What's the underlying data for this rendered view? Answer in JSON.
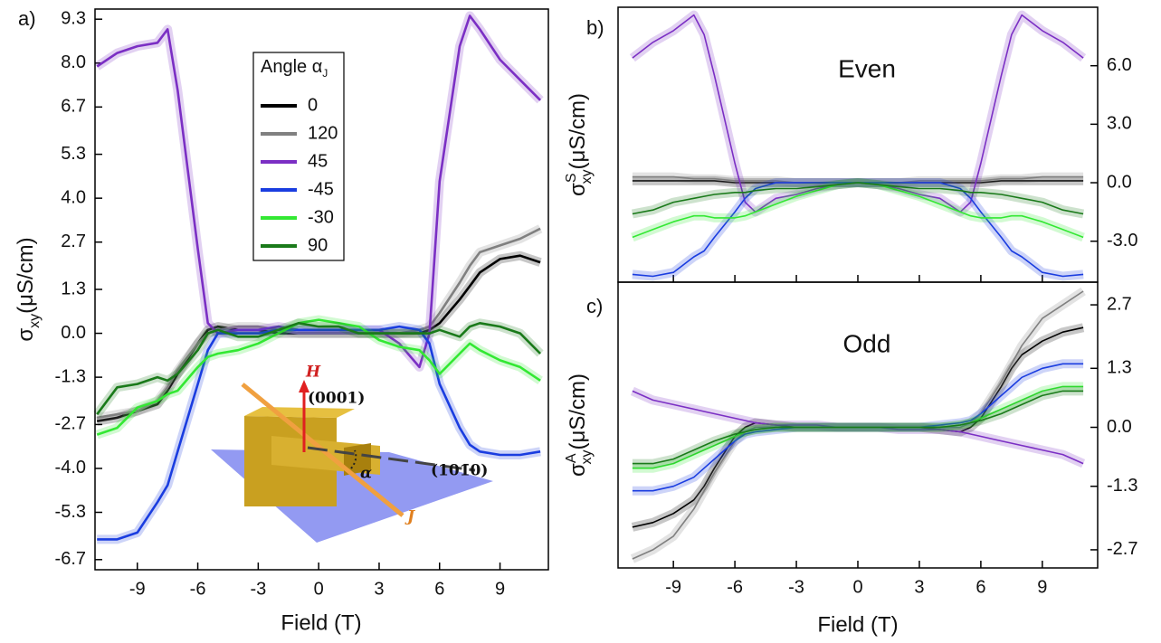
{
  "chart_data": [
    {
      "type": "line",
      "panel_label": "a)",
      "x_label": "Field (T)",
      "y_label": {
        "symbol": "σ",
        "sub": "xy",
        "unit": "(μS/cm)"
      },
      "legend_title": {
        "text": "Angle α",
        "sub": "J"
      },
      "annotations": [
        "H",
        "(0001)",
        "(101̄0)",
        "α",
        "J"
      ],
      "xlim": [
        -11.1,
        11.4
      ],
      "ylim": [
        -7.0,
        9.6
      ],
      "xticks": [
        -9,
        -6,
        -3,
        0,
        3,
        6,
        9
      ],
      "yticks": [
        9.3,
        {
          "value": 8,
          "label": "8.0"
        },
        6.7,
        5.3,
        {
          "value": 4,
          "label": "4.0"
        },
        2.7,
        1.3,
        {
          "value": 0,
          "label": "0.0"
        },
        -1.3,
        -2.7,
        {
          "value": -4,
          "label": "-4.0"
        },
        -5.3,
        -6.7
      ],
      "x": [
        -11,
        -10,
        -9,
        -8,
        -7.5,
        -7,
        -6,
        -5.5,
        -5,
        -4,
        -3,
        -2,
        -1,
        0,
        1,
        2,
        3,
        4,
        5,
        5.5,
        6,
        7,
        7.5,
        8,
        9,
        10,
        11
      ],
      "series": [
        {
          "name": "0",
          "color": "#000000",
          "values": [
            -2.6,
            -2.5,
            -2.3,
            -2.1,
            -1.7,
            -1.2,
            -0.3,
            0.1,
            0.2,
            0.1,
            0.1,
            0,
            0,
            0,
            0,
            0,
            0,
            0,
            0,
            0.1,
            0.3,
            1.0,
            1.4,
            1.8,
            2.2,
            2.3,
            2.1
          ]
        },
        {
          "name": "120",
          "color": "#808080",
          "values": [
            -2.5,
            -2.4,
            -2.3,
            -2.0,
            -1.6,
            -1.1,
            -0.3,
            0,
            0.1,
            0.2,
            0.2,
            0.1,
            0,
            0,
            0,
            0,
            0,
            0,
            0.1,
            0.2,
            0.6,
            1.5,
            2.0,
            2.4,
            2.6,
            2.8,
            3.1
          ]
        },
        {
          "name": "45",
          "color": "#7b2fc4",
          "values": [
            7.9,
            8.3,
            8.5,
            8.6,
            9.0,
            7.2,
            2.5,
            0.3,
            0.0,
            0.1,
            0.1,
            0.2,
            0.1,
            0.1,
            0.1,
            0.1,
            0.1,
            -0.3,
            -1.0,
            0.0,
            4.5,
            8.5,
            9.4,
            9.0,
            8.1,
            7.5,
            6.9
          ]
        },
        {
          "name": "-45",
          "color": "#1a3de0",
          "values": [
            -6.1,
            -6.1,
            -5.9,
            -5.0,
            -4.5,
            -3.5,
            -1.5,
            -0.5,
            0.0,
            0,
            0,
            0.1,
            0.1,
            0.1,
            0.1,
            0.1,
            0.1,
            0.2,
            0.1,
            -0.3,
            -1.5,
            -2.8,
            -3.3,
            -3.5,
            -3.6,
            -3.6,
            -3.5
          ]
        },
        {
          "name": "-30",
          "color": "#33e833",
          "values": [
            -3.0,
            -2.8,
            -2.2,
            -2.0,
            -1.8,
            -1.7,
            -1.0,
            -0.7,
            -0.6,
            -0.5,
            -0.3,
            0,
            0.3,
            0.4,
            0.3,
            0.2,
            -0.2,
            -0.4,
            -0.5,
            -0.8,
            -1.2,
            -0.6,
            -0.3,
            -0.5,
            -0.8,
            -1.0,
            -1.4
          ]
        },
        {
          "name": "90",
          "color": "#1a7a1a",
          "values": [
            -2.4,
            -1.6,
            -1.5,
            -1.3,
            -1.4,
            -1.2,
            -0.5,
            0.0,
            0.1,
            -0.1,
            -0.1,
            0.1,
            0.3,
            0.2,
            0.2,
            0,
            0,
            0,
            0,
            0,
            0.1,
            -0.1,
            0.2,
            0.3,
            0.2,
            0,
            -0.6
          ]
        }
      ]
    },
    {
      "type": "line",
      "panel_label": "b)",
      "annotation": "Even",
      "y_label": {
        "symbol": "σ",
        "sup": "S",
        "sub": "xy",
        "unit": "(μS/cm)"
      },
      "xlim": [
        -11.7,
        11.7
      ],
      "ylim": [
        -5.1,
        9.0
      ],
      "xticks": [
        -9,
        -6,
        -3,
        0,
        3,
        6,
        9
      ],
      "yticks": [
        {
          "value": 6,
          "label": "6.0"
        },
        {
          "value": 3,
          "label": "3.0"
        },
        {
          "value": 0,
          "label": "0.0"
        },
        {
          "value": -3,
          "label": "-3.0"
        }
      ],
      "x": [
        -11,
        -10,
        -9,
        -8,
        -7.5,
        -7,
        -6,
        -5.5,
        -5,
        -4,
        -3,
        -2,
        -1,
        0,
        1,
        2,
        3,
        4,
        5,
        5.5,
        6,
        7,
        7.5,
        8,
        9,
        10,
        11
      ],
      "series": [
        {
          "color": "#000000",
          "values": [
            0.1,
            0.1,
            0.1,
            0.1,
            0.1,
            0.1,
            0,
            0,
            0,
            0,
            0,
            0,
            0,
            0,
            0,
            0,
            0,
            0,
            0,
            0,
            0,
            0.1,
            0.1,
            0.1,
            0.1,
            0.1,
            0.1
          ]
        },
        {
          "color": "#808080",
          "values": [
            0.3,
            0.3,
            0.3,
            0.2,
            0.2,
            0.2,
            0.1,
            0.1,
            0.1,
            0.1,
            0,
            0,
            0,
            0,
            0,
            0,
            0.1,
            0.1,
            0.1,
            0.1,
            0.1,
            0.2,
            0.2,
            0.2,
            0.3,
            0.3,
            0.3
          ]
        },
        {
          "color": "#7b2fc4",
          "values": [
            6.4,
            7.2,
            7.8,
            8.6,
            7.6,
            5.5,
            1.0,
            -1.0,
            -1.5,
            -0.8,
            -0.6,
            -0.3,
            -0.1,
            0,
            -0.1,
            -0.3,
            -0.6,
            -0.8,
            -1.5,
            -1.0,
            1.0,
            5.5,
            7.6,
            8.6,
            7.8,
            7.2,
            6.4
          ]
        },
        {
          "color": "#1a3de0",
          "values": [
            -4.7,
            -4.8,
            -4.6,
            -3.8,
            -3.5,
            -2.8,
            -1.5,
            -0.8,
            -0.3,
            0,
            0,
            0,
            0,
            0,
            0,
            0,
            0,
            0,
            -0.3,
            -0.8,
            -1.5,
            -2.8,
            -3.5,
            -3.8,
            -4.6,
            -4.8,
            -4.7
          ]
        },
        {
          "color": "#33e833",
          "values": [
            -2.8,
            -2.4,
            -2.0,
            -1.7,
            -1.7,
            -1.8,
            -1.8,
            -1.7,
            -1.5,
            -1.1,
            -0.7,
            -0.4,
            -0.1,
            0,
            -0.1,
            -0.4,
            -0.7,
            -1.1,
            -1.5,
            -1.7,
            -1.8,
            -1.8,
            -1.7,
            -1.7,
            -2.0,
            -2.4,
            -2.8
          ]
        },
        {
          "color": "#1a7a1a",
          "values": [
            -1.6,
            -1.4,
            -1.0,
            -0.8,
            -0.7,
            -0.6,
            -0.5,
            -0.5,
            -0.4,
            -0.3,
            -0.3,
            -0.2,
            -0.1,
            0,
            -0.1,
            -0.2,
            -0.3,
            -0.3,
            -0.4,
            -0.5,
            -0.5,
            -0.6,
            -0.7,
            -0.8,
            -1.0,
            -1.4,
            -1.6
          ]
        }
      ]
    },
    {
      "type": "line",
      "panel_label": "c)",
      "annotation": "Odd",
      "x_label": "Field (T)",
      "y_label": {
        "symbol": "σ",
        "sup": "A",
        "sub": "xy",
        "unit": "(μS/cm)"
      },
      "xlim": [
        -11.7,
        11.7
      ],
      "ylim": [
        -3.1,
        3.2
      ],
      "xticks": [
        -9,
        -6,
        -3,
        0,
        3,
        6,
        9
      ],
      "yticks": [
        2.7,
        1.3,
        {
          "value": 0,
          "label": "0.0"
        },
        -1.3,
        -2.7
      ],
      "x": [
        -11,
        -10,
        -9,
        -8,
        -7.5,
        -7,
        -6,
        -5.5,
        -5,
        -4,
        -3,
        -2,
        -1,
        0,
        1,
        2,
        3,
        4,
        5,
        5.5,
        6,
        7,
        7.5,
        8,
        9,
        10,
        11
      ],
      "series": [
        {
          "color": "#000000",
          "values": [
            -2.2,
            -2.1,
            -1.9,
            -1.6,
            -1.3,
            -0.9,
            -0.2,
            0,
            0.1,
            0.05,
            0,
            0,
            0,
            0,
            0,
            0,
            0,
            -0.05,
            -0.1,
            0,
            0.2,
            0.9,
            1.3,
            1.6,
            1.9,
            2.1,
            2.2
          ]
        },
        {
          "color": "#808080",
          "values": [
            -2.9,
            -2.7,
            -2.4,
            -1.8,
            -1.4,
            -1.0,
            -0.3,
            -0.1,
            0,
            0,
            0,
            0,
            0,
            0,
            0,
            0,
            0,
            0,
            0,
            0.1,
            0.3,
            1.0,
            1.4,
            1.8,
            2.4,
            2.7,
            3.0
          ]
        },
        {
          "color": "#7b2fc4",
          "values": [
            0.8,
            0.6,
            0.5,
            0.4,
            0.35,
            0.3,
            0.2,
            0.15,
            0.1,
            0.05,
            0.05,
            0.05,
            0,
            0,
            0,
            -0.05,
            -0.05,
            -0.05,
            -0.1,
            -0.15,
            -0.2,
            -0.3,
            -0.35,
            -0.4,
            -0.5,
            -0.6,
            -0.8
          ]
        },
        {
          "color": "#1a3de0",
          "values": [
            -1.4,
            -1.4,
            -1.3,
            -1.1,
            -0.9,
            -0.7,
            -0.3,
            -0.15,
            -0.1,
            -0.05,
            0,
            0,
            0,
            0,
            0,
            0,
            0,
            0.05,
            0.1,
            0.15,
            0.3,
            0.7,
            0.9,
            1.1,
            1.3,
            1.4,
            1.4
          ]
        },
        {
          "color": "#33e833",
          "values": [
            -0.9,
            -0.9,
            -0.8,
            -0.6,
            -0.5,
            -0.4,
            -0.2,
            -0.1,
            -0.05,
            0,
            0,
            0,
            0,
            0,
            0,
            0,
            0,
            0,
            0.05,
            0.1,
            0.2,
            0.4,
            0.5,
            0.6,
            0.8,
            0.9,
            0.9
          ]
        },
        {
          "color": "#1a7a1a",
          "values": [
            -0.8,
            -0.8,
            -0.7,
            -0.5,
            -0.4,
            -0.3,
            -0.15,
            -0.1,
            -0.05,
            0,
            0,
            0,
            0,
            0,
            0,
            0,
            0,
            0,
            0.05,
            0.1,
            0.15,
            0.3,
            0.4,
            0.5,
            0.7,
            0.8,
            0.8
          ]
        }
      ]
    }
  ]
}
